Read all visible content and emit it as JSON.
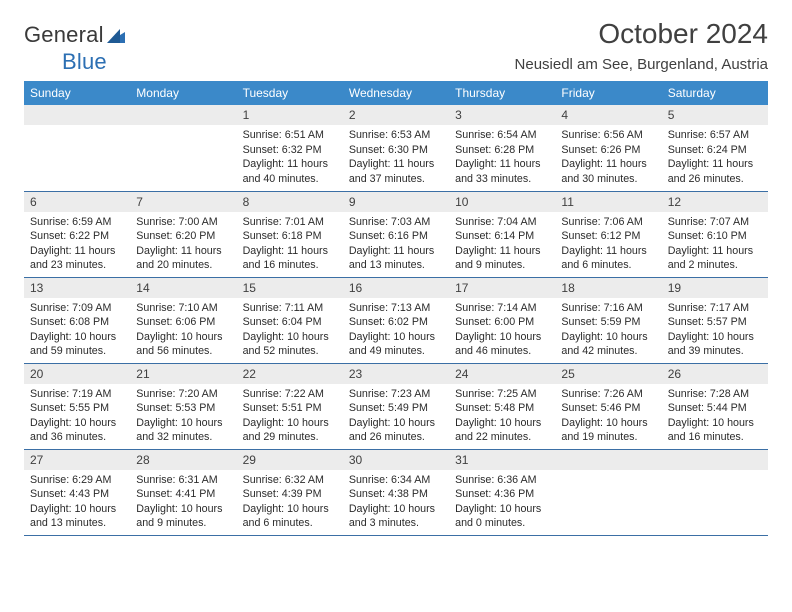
{
  "logo": {
    "textDark": "General",
    "textBlue": "Blue"
  },
  "title": "October 2024",
  "location": "Neusiedl am See, Burgenland, Austria",
  "header_bg": "#3b89c9",
  "header_fg": "#ffffff",
  "daynum_bg": "#ececec",
  "border_color": "#3b6fa5",
  "dayNames": [
    "Sunday",
    "Monday",
    "Tuesday",
    "Wednesday",
    "Thursday",
    "Friday",
    "Saturday"
  ],
  "weeks": [
    [
      null,
      null,
      {
        "n": "1",
        "sr": "Sunrise: 6:51 AM",
        "ss": "Sunset: 6:32 PM",
        "dl": "Daylight: 11 hours and 40 minutes."
      },
      {
        "n": "2",
        "sr": "Sunrise: 6:53 AM",
        "ss": "Sunset: 6:30 PM",
        "dl": "Daylight: 11 hours and 37 minutes."
      },
      {
        "n": "3",
        "sr": "Sunrise: 6:54 AM",
        "ss": "Sunset: 6:28 PM",
        "dl": "Daylight: 11 hours and 33 minutes."
      },
      {
        "n": "4",
        "sr": "Sunrise: 6:56 AM",
        "ss": "Sunset: 6:26 PM",
        "dl": "Daylight: 11 hours and 30 minutes."
      },
      {
        "n": "5",
        "sr": "Sunrise: 6:57 AM",
        "ss": "Sunset: 6:24 PM",
        "dl": "Daylight: 11 hours and 26 minutes."
      }
    ],
    [
      {
        "n": "6",
        "sr": "Sunrise: 6:59 AM",
        "ss": "Sunset: 6:22 PM",
        "dl": "Daylight: 11 hours and 23 minutes."
      },
      {
        "n": "7",
        "sr": "Sunrise: 7:00 AM",
        "ss": "Sunset: 6:20 PM",
        "dl": "Daylight: 11 hours and 20 minutes."
      },
      {
        "n": "8",
        "sr": "Sunrise: 7:01 AM",
        "ss": "Sunset: 6:18 PM",
        "dl": "Daylight: 11 hours and 16 minutes."
      },
      {
        "n": "9",
        "sr": "Sunrise: 7:03 AM",
        "ss": "Sunset: 6:16 PM",
        "dl": "Daylight: 11 hours and 13 minutes."
      },
      {
        "n": "10",
        "sr": "Sunrise: 7:04 AM",
        "ss": "Sunset: 6:14 PM",
        "dl": "Daylight: 11 hours and 9 minutes."
      },
      {
        "n": "11",
        "sr": "Sunrise: 7:06 AM",
        "ss": "Sunset: 6:12 PM",
        "dl": "Daylight: 11 hours and 6 minutes."
      },
      {
        "n": "12",
        "sr": "Sunrise: 7:07 AM",
        "ss": "Sunset: 6:10 PM",
        "dl": "Daylight: 11 hours and 2 minutes."
      }
    ],
    [
      {
        "n": "13",
        "sr": "Sunrise: 7:09 AM",
        "ss": "Sunset: 6:08 PM",
        "dl": "Daylight: 10 hours and 59 minutes."
      },
      {
        "n": "14",
        "sr": "Sunrise: 7:10 AM",
        "ss": "Sunset: 6:06 PM",
        "dl": "Daylight: 10 hours and 56 minutes."
      },
      {
        "n": "15",
        "sr": "Sunrise: 7:11 AM",
        "ss": "Sunset: 6:04 PM",
        "dl": "Daylight: 10 hours and 52 minutes."
      },
      {
        "n": "16",
        "sr": "Sunrise: 7:13 AM",
        "ss": "Sunset: 6:02 PM",
        "dl": "Daylight: 10 hours and 49 minutes."
      },
      {
        "n": "17",
        "sr": "Sunrise: 7:14 AM",
        "ss": "Sunset: 6:00 PM",
        "dl": "Daylight: 10 hours and 46 minutes."
      },
      {
        "n": "18",
        "sr": "Sunrise: 7:16 AM",
        "ss": "Sunset: 5:59 PM",
        "dl": "Daylight: 10 hours and 42 minutes."
      },
      {
        "n": "19",
        "sr": "Sunrise: 7:17 AM",
        "ss": "Sunset: 5:57 PM",
        "dl": "Daylight: 10 hours and 39 minutes."
      }
    ],
    [
      {
        "n": "20",
        "sr": "Sunrise: 7:19 AM",
        "ss": "Sunset: 5:55 PM",
        "dl": "Daylight: 10 hours and 36 minutes."
      },
      {
        "n": "21",
        "sr": "Sunrise: 7:20 AM",
        "ss": "Sunset: 5:53 PM",
        "dl": "Daylight: 10 hours and 32 minutes."
      },
      {
        "n": "22",
        "sr": "Sunrise: 7:22 AM",
        "ss": "Sunset: 5:51 PM",
        "dl": "Daylight: 10 hours and 29 minutes."
      },
      {
        "n": "23",
        "sr": "Sunrise: 7:23 AM",
        "ss": "Sunset: 5:49 PM",
        "dl": "Daylight: 10 hours and 26 minutes."
      },
      {
        "n": "24",
        "sr": "Sunrise: 7:25 AM",
        "ss": "Sunset: 5:48 PM",
        "dl": "Daylight: 10 hours and 22 minutes."
      },
      {
        "n": "25",
        "sr": "Sunrise: 7:26 AM",
        "ss": "Sunset: 5:46 PM",
        "dl": "Daylight: 10 hours and 19 minutes."
      },
      {
        "n": "26",
        "sr": "Sunrise: 7:28 AM",
        "ss": "Sunset: 5:44 PM",
        "dl": "Daylight: 10 hours and 16 minutes."
      }
    ],
    [
      {
        "n": "27",
        "sr": "Sunrise: 6:29 AM",
        "ss": "Sunset: 4:43 PM",
        "dl": "Daylight: 10 hours and 13 minutes."
      },
      {
        "n": "28",
        "sr": "Sunrise: 6:31 AM",
        "ss": "Sunset: 4:41 PM",
        "dl": "Daylight: 10 hours and 9 minutes."
      },
      {
        "n": "29",
        "sr": "Sunrise: 6:32 AM",
        "ss": "Sunset: 4:39 PM",
        "dl": "Daylight: 10 hours and 6 minutes."
      },
      {
        "n": "30",
        "sr": "Sunrise: 6:34 AM",
        "ss": "Sunset: 4:38 PM",
        "dl": "Daylight: 10 hours and 3 minutes."
      },
      {
        "n": "31",
        "sr": "Sunrise: 6:36 AM",
        "ss": "Sunset: 4:36 PM",
        "dl": "Daylight: 10 hours and 0 minutes."
      },
      null,
      null
    ]
  ]
}
